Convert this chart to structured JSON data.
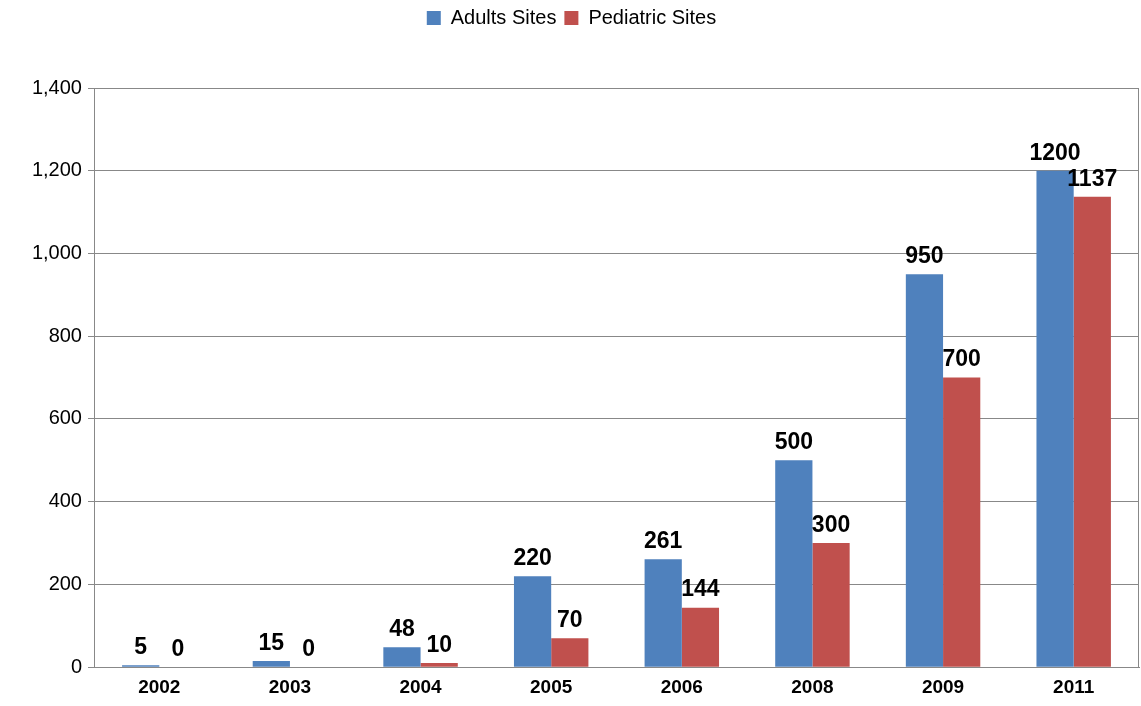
{
  "chart_data": {
    "type": "bar",
    "categories": [
      "2002",
      "2003",
      "2004",
      "2005",
      "2006",
      "2008",
      "2009",
      "2011"
    ],
    "series": [
      {
        "name": "Adults Sites",
        "color": "#4f81bd",
        "values": [
          5,
          15,
          48,
          220,
          261,
          500,
          950,
          1200
        ]
      },
      {
        "name": "Pediatric Sites",
        "color": "#c0504d",
        "values": [
          0,
          0,
          10,
          70,
          144,
          300,
          700,
          1137
        ]
      }
    ],
    "ylim": [
      0,
      1400
    ],
    "yticks": [
      0,
      200,
      400,
      600,
      800,
      {
        "value": 1000,
        "label": "1,000"
      },
      {
        "value": 1200,
        "label": "1,200"
      },
      {
        "value": 1400,
        "label": "1,400"
      }
    ],
    "grid": "y",
    "legend": "top",
    "data_labels": true
  }
}
